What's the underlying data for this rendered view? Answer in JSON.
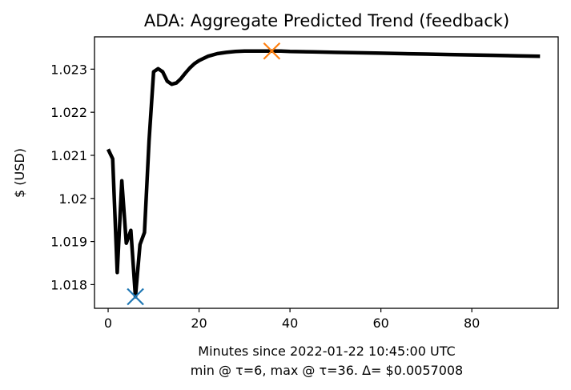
{
  "chart_data": {
    "type": "line",
    "title": "ADA: Aggregate Predicted Trend (feedback)",
    "xlabel": "Minutes since 2022-01-22 10:45:00 UTC",
    "xlabel_sub": "min @ τ=6, max @ τ=36. Δ= $0.0057008",
    "ylabel": "$ (USD)",
    "xlim": [
      -3,
      99
    ],
    "ylim": [
      1.01745,
      1.02375
    ],
    "x_ticks": [
      0,
      20,
      40,
      60,
      80
    ],
    "x_tick_labels": [
      "0",
      "20",
      "40",
      "60",
      "80"
    ],
    "y_ticks": [
      1.018,
      1.019,
      1.02,
      1.021,
      1.022,
      1.023
    ],
    "y_tick_labels": [
      "1.018",
      "1.019",
      "1.02",
      "1.021",
      "1.022",
      "1.023"
    ],
    "grid": false,
    "series": [
      {
        "color": "#000000",
        "x": [
          0,
          1,
          2,
          3,
          4,
          5,
          6,
          7,
          8,
          9,
          10,
          11,
          12,
          13,
          14,
          15,
          16,
          17,
          18,
          19,
          20,
          22,
          24,
          26,
          28,
          30,
          32,
          34,
          36,
          38,
          40,
          45,
          50,
          55,
          60,
          65,
          70,
          75,
          80,
          85,
          90,
          95
        ],
        "y": [
          1.02114,
          1.02092,
          1.01828,
          1.02041,
          1.01896,
          1.01926,
          1.01772,
          1.01893,
          1.01921,
          1.02133,
          1.02294,
          1.02301,
          1.02294,
          1.02272,
          1.02265,
          1.02268,
          1.02278,
          1.02291,
          1.02303,
          1.02313,
          1.0232,
          1.0233,
          1.02336,
          1.02339,
          1.02341,
          1.02342,
          1.02342,
          1.02342,
          1.02342,
          1.02342,
          1.02341,
          1.0234,
          1.02339,
          1.02338,
          1.02337,
          1.02336,
          1.02335,
          1.02334,
          1.02333,
          1.02332,
          1.02331,
          1.0233
        ]
      }
    ],
    "markers": [
      {
        "x": 6,
        "y": 1.01772,
        "color": "#1f77b4",
        "shape": "x"
      },
      {
        "x": 36,
        "y": 1.02342,
        "color": "#ff7f0e",
        "shape": "x"
      }
    ]
  }
}
